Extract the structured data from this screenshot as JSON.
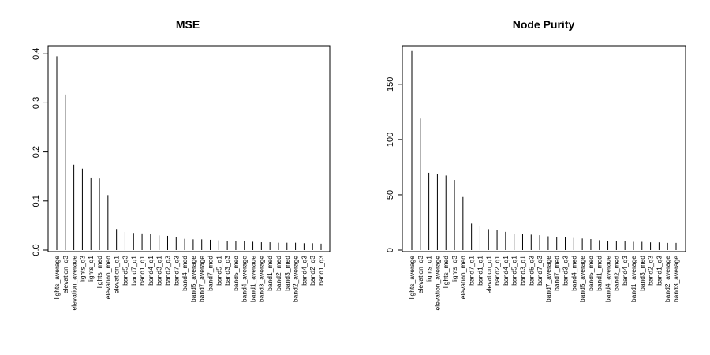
{
  "chart_data": [
    {
      "type": "bar",
      "title": "MSE",
      "xlabel": "",
      "ylabel": "",
      "ylim": [
        0,
        0.41
      ],
      "yticks": [
        "0.0",
        "0.1",
        "0.2",
        "0.3",
        "0.4"
      ],
      "ytick_values": [
        0,
        0.1,
        0.2,
        0.3,
        0.4
      ],
      "grid": false,
      "categories": [
        "lights_average",
        "elevation_q3",
        "elevation_average",
        "lights_q3",
        "lights_q1",
        "lights_med",
        "elevation_med",
        "elevation_q1",
        "band5_q3",
        "band7_q1",
        "band1_q1",
        "band4_q1",
        "band3_q1",
        "band2_q3",
        "band7_q3",
        "band4_med",
        "band5_average",
        "band7_average",
        "band7_med",
        "band5_q1",
        "band3_q3",
        "band5_med",
        "band4_average",
        "band1_average",
        "band3_average",
        "band1_med",
        "band2_med",
        "band3_med",
        "band2_average",
        "band4_q3",
        "band2_q3",
        "band1_q3"
      ],
      "values": [
        0.395,
        0.317,
        0.174,
        0.166,
        0.148,
        0.146,
        0.112,
        0.043,
        0.037,
        0.035,
        0.034,
        0.033,
        0.03,
        0.029,
        0.027,
        0.023,
        0.022,
        0.022,
        0.021,
        0.02,
        0.019,
        0.018,
        0.018,
        0.017,
        0.016,
        0.016,
        0.015,
        0.015,
        0.015,
        0.014,
        0.014,
        0.013
      ]
    },
    {
      "type": "bar",
      "title": "Node Purity",
      "xlabel": "",
      "ylabel": "",
      "ylim": [
        0,
        182
      ],
      "yticks": [
        "0",
        "50",
        "100",
        "150"
      ],
      "ytick_values": [
        0,
        50,
        100,
        150
      ],
      "grid": false,
      "categories": [
        "lights_average",
        "elevation_q3",
        "lights_q1",
        "elevation_average",
        "lights_med",
        "lights_q3",
        "elevation_med",
        "band7_q1",
        "band1_q1",
        "elevation_q1",
        "band2_q1",
        "band4_q1",
        "band5_q1",
        "band3_q1",
        "band5_q3",
        "band7_q3",
        "band7_average",
        "band7_med",
        "band3_q3",
        "band4_med",
        "band5_average",
        "band5_med",
        "band1_med",
        "band4_average",
        "band2_med",
        "band4_q3",
        "band1_average",
        "band3_med",
        "band2_q3",
        "band1_q3",
        "band2_average",
        "band3_average"
      ],
      "values": [
        180,
        119,
        70,
        69,
        67.5,
        63.5,
        48,
        24,
        22,
        19,
        18.5,
        16.5,
        15,
        14.5,
        14,
        13.5,
        12.5,
        12,
        11.5,
        11,
        10.5,
        10,
        9,
        8.5,
        8,
        8,
        7.5,
        7.5,
        7,
        7,
        6.5,
        6.5
      ]
    }
  ]
}
